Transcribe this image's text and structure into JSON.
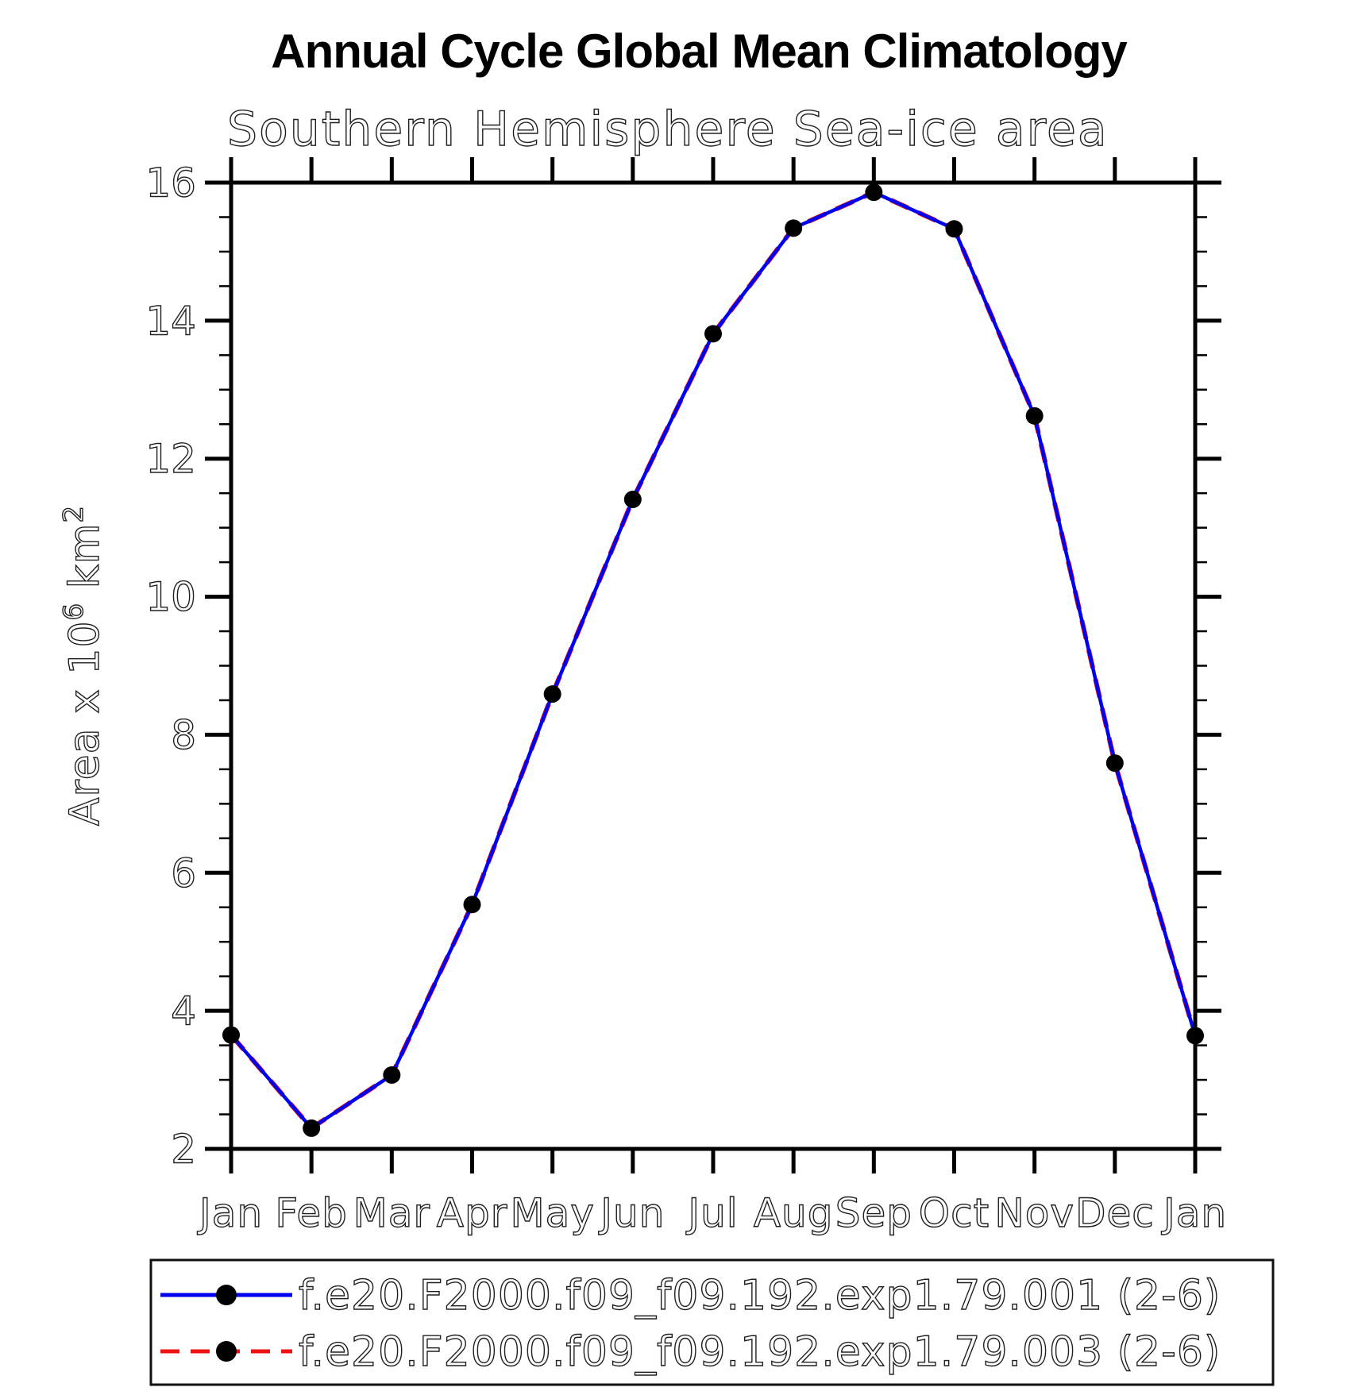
{
  "chart_data": {
    "type": "line",
    "title": "Annual Cycle Global Mean Climatology",
    "subtitle": "Southern Hemisphere Sea-ice area",
    "ylabel": {
      "plain": "Area x 10^6 km^2",
      "prefix": "Area x 10",
      "sup1": "6",
      "mid": " km",
      "sup2": "2"
    },
    "x_categories": [
      "Jan",
      "Feb",
      "Mar",
      "Apr",
      "May",
      "Jun",
      "Jul",
      "Aug",
      "Sep",
      "Oct",
      "Nov",
      "Dec",
      "Jan"
    ],
    "y_axis": {
      "min": 2,
      "max": 16,
      "major_step": 2,
      "minor_step": 0.5,
      "tick_labels": [
        "2",
        "4",
        "6",
        "8",
        "10",
        "12",
        "14",
        "16"
      ]
    },
    "grid": false,
    "legend_position": "bottom",
    "axis_color": "#000000",
    "marker_color": "#000000",
    "series": [
      {
        "name": "f.e20.F2000.f09_f09.192.exp1.79.001 (2-6)",
        "color": "#0000EE",
        "line_style": "solid",
        "marker": "filled-circle",
        "values": [
          3.65,
          2.3,
          3.07,
          5.54,
          8.59,
          11.41,
          13.81,
          15.34,
          15.86,
          15.33,
          12.62,
          7.59,
          3.64
        ]
      },
      {
        "name": "f.e20.F2000.f09_f09.192.exp1.79.003 (2-6)",
        "color": "#EE1111",
        "line_style": "dashed",
        "marker": "filled-circle",
        "values": [
          3.65,
          2.3,
          3.07,
          5.54,
          8.59,
          11.41,
          13.81,
          15.34,
          15.86,
          15.33,
          12.62,
          7.59,
          3.64
        ]
      }
    ]
  }
}
